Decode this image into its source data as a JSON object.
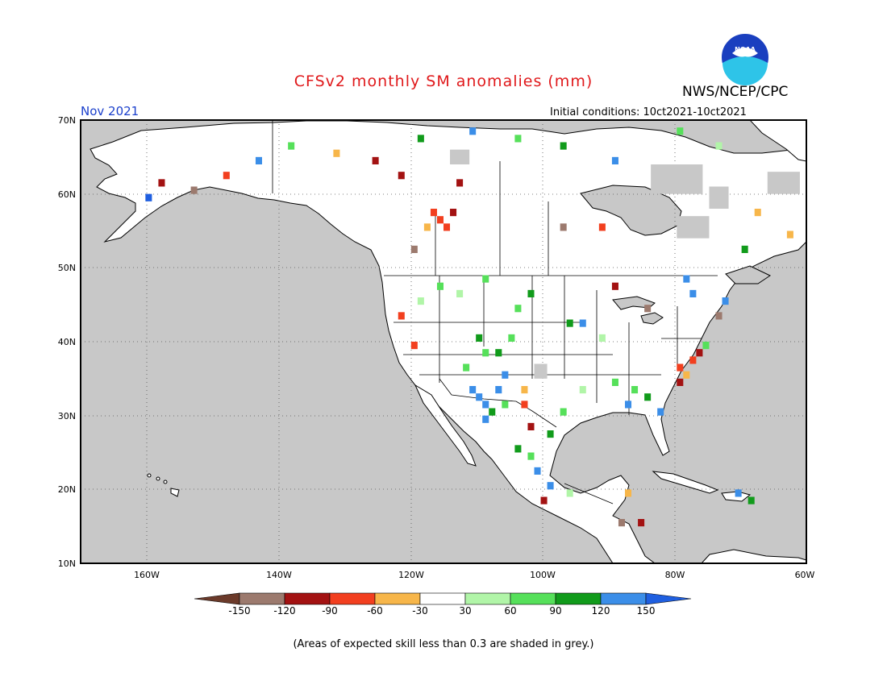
{
  "map": {
    "title": "CFSv2 monthly SM anomalies (mm)",
    "agency": "NWS/NCEP/CPC",
    "logo_text": "NOAA",
    "period": "Nov 2021",
    "initial_conditions": "Initial conditions: 10ct2021-10ct2021",
    "footnote": "(Areas of expected skill less than 0.3 are shaded in grey.)",
    "region": "North America",
    "projection": "equirectangular",
    "lon_range": [
      -172,
      -60
    ],
    "lat_range": [
      10,
      70
    ],
    "grid": true,
    "lat_ticks": [
      "10N",
      "20N",
      "30N",
      "40N",
      "50N",
      "60N",
      "70N"
    ],
    "lon_ticks": [
      "160W",
      "140W",
      "120W",
      "100W",
      "80W",
      "60W"
    ]
  },
  "colors": {
    "title": "#e0191b",
    "period": "#1a3fcc",
    "ocean": "#c8c8c8",
    "land": "#ffffff",
    "no_skill": "#c8c8c8",
    "bin_colors": [
      "#6b3a2a",
      "#9c7a6e",
      "#a31212",
      "#f23f1f",
      "#f7b64a",
      "#ffffff",
      "#b1f5a8",
      "#56e05a",
      "#119b1b",
      "#3b8ee8",
      "#1f5fe0"
    ]
  },
  "colorbar": {
    "labels": [
      "-150",
      "-120",
      "-90",
      "-60",
      "-30",
      "30",
      "60",
      "90",
      "120",
      "150"
    ]
  },
  "anomaly_cells": [
    {
      "lon": -117,
      "lat": 56,
      "value": -70
    },
    {
      "lon": -116,
      "lat": 55,
      "value": -70
    },
    {
      "lon": -118,
      "lat": 57,
      "value": -60
    },
    {
      "lon": -115,
      "lat": 57,
      "value": -100
    },
    {
      "lon": -119,
      "lat": 55,
      "value": -40
    },
    {
      "lon": -121,
      "lat": 52,
      "value": -130
    },
    {
      "lon": -123,
      "lat": 62,
      "value": -110
    },
    {
      "lon": -114,
      "lat": 61,
      "value": -100
    },
    {
      "lon": -111,
      "lat": 32,
      "value": 130
    },
    {
      "lon": -110,
      "lat": 31,
      "value": 130
    },
    {
      "lon": -110,
      "lat": 29,
      "value": 130
    },
    {
      "lon": -109,
      "lat": 30,
      "value": 100
    },
    {
      "lon": -108,
      "lat": 33,
      "value": 130
    },
    {
      "lon": -107,
      "lat": 35,
      "value": 130
    },
    {
      "lon": -112,
      "lat": 33,
      "value": 130
    },
    {
      "lon": -107,
      "lat": 31,
      "value": 70
    },
    {
      "lon": -104,
      "lat": 33,
      "value": -40
    },
    {
      "lon": -104,
      "lat": 31,
      "value": -70
    },
    {
      "lon": -103,
      "lat": 28,
      "value": -100
    },
    {
      "lon": -105,
      "lat": 25,
      "value": 100
    },
    {
      "lon": -102,
      "lat": 22,
      "value": 130
    },
    {
      "lon": -100,
      "lat": 20,
      "value": 130
    },
    {
      "lon": -101,
      "lat": 18,
      "value": -110
    },
    {
      "lon": -95,
      "lat": 42,
      "value": 130
    },
    {
      "lon": -97,
      "lat": 42,
      "value": 100
    },
    {
      "lon": -87,
      "lat": 33,
      "value": 70
    },
    {
      "lon": -85,
      "lat": 32,
      "value": 100
    },
    {
      "lon": -83,
      "lat": 30,
      "value": 130
    },
    {
      "lon": -88,
      "lat": 31,
      "value": 130
    },
    {
      "lon": -80,
      "lat": 36,
      "value": -70
    },
    {
      "lon": -79,
      "lat": 35,
      "value": -40
    },
    {
      "lon": -78,
      "lat": 37,
      "value": -70
    },
    {
      "lon": -77,
      "lat": 38,
      "value": -100
    },
    {
      "lon": -80,
      "lat": 34,
      "value": -100
    },
    {
      "lon": -76,
      "lat": 39,
      "value": 70
    },
    {
      "lon": -74,
      "lat": 43,
      "value": -130
    },
    {
      "lon": -73,
      "lat": 45,
      "value": 130
    },
    {
      "lon": -78,
      "lat": 46,
      "value": 130
    },
    {
      "lon": -79,
      "lat": 48,
      "value": 130
    },
    {
      "lon": -85,
      "lat": 44,
      "value": -130
    },
    {
      "lon": -90,
      "lat": 47,
      "value": -110
    },
    {
      "lon": -98,
      "lat": 55,
      "value": -130
    },
    {
      "lon": -92,
      "lat": 55,
      "value": -70
    },
    {
      "lon": -86,
      "lat": 15,
      "value": -100
    },
    {
      "lon": -88,
      "lat": 19,
      "value": -40
    },
    {
      "lon": -89,
      "lat": 15,
      "value": -130
    },
    {
      "lon": -71,
      "lat": 19,
      "value": 130
    },
    {
      "lon": -69,
      "lat": 18,
      "value": 100
    },
    {
      "lon": -123,
      "lat": 43,
      "value": -70
    },
    {
      "lon": -121,
      "lat": 39,
      "value": -70
    },
    {
      "lon": -111,
      "lat": 40,
      "value": 100
    },
    {
      "lon": -110,
      "lat": 38,
      "value": 70
    },
    {
      "lon": -113,
      "lat": 36,
      "value": 70
    },
    {
      "lon": -108,
      "lat": 38,
      "value": 100
    },
    {
      "lon": -106,
      "lat": 40,
      "value": 70
    },
    {
      "lon": -105,
      "lat": 44,
      "value": 70
    },
    {
      "lon": -103,
      "lat": 46,
      "value": 100
    },
    {
      "lon": -110,
      "lat": 48,
      "value": 70
    },
    {
      "lon": -114,
      "lat": 46,
      "value": 40
    },
    {
      "lon": -117,
      "lat": 47,
      "value": 70
    },
    {
      "lon": -120,
      "lat": 45,
      "value": 40
    },
    {
      "lon": -92,
      "lat": 40,
      "value": 40
    },
    {
      "lon": -90,
      "lat": 34,
      "value": 70
    },
    {
      "lon": -95,
      "lat": 33,
      "value": 40
    },
    {
      "lon": -98,
      "lat": 30,
      "value": 70
    },
    {
      "lon": -100,
      "lat": 27,
      "value": 100
    },
    {
      "lon": -103,
      "lat": 24,
      "value": 70
    },
    {
      "lon": -97,
      "lat": 19,
      "value": 40
    },
    {
      "lon": -150,
      "lat": 62,
      "value": -70
    },
    {
      "lon": -155,
      "lat": 60,
      "value": -130
    },
    {
      "lon": -160,
      "lat": 61,
      "value": -110
    },
    {
      "lon": -162,
      "lat": 59,
      "value": 150
    },
    {
      "lon": -145,
      "lat": 64,
      "value": 130
    },
    {
      "lon": -140,
      "lat": 66,
      "value": 70
    },
    {
      "lon": -133,
      "lat": 65,
      "value": -40
    },
    {
      "lon": -127,
      "lat": 64,
      "value": -100
    },
    {
      "lon": -120,
      "lat": 67,
      "value": 100
    },
    {
      "lon": -112,
      "lat": 68,
      "value": 130
    },
    {
      "lon": -105,
      "lat": 67,
      "value": 70
    },
    {
      "lon": -98,
      "lat": 66,
      "value": 100
    },
    {
      "lon": -90,
      "lat": 64,
      "value": 130
    },
    {
      "lon": -80,
      "lat": 68,
      "value": 70
    },
    {
      "lon": -74,
      "lat": 66,
      "value": 40
    },
    {
      "lon": -68,
      "lat": 57,
      "value": -40
    },
    {
      "lon": -63,
      "lat": 54,
      "value": -40
    },
    {
      "lon": -70,
      "lat": 52,
      "value": 100
    }
  ],
  "no_skill_areas": [
    {
      "lon": -84,
      "lat": 60,
      "w": 8,
      "h": 4
    },
    {
      "lon": -80,
      "lat": 54,
      "w": 5,
      "h": 3
    },
    {
      "lon": -66,
      "lat": 60,
      "w": 5,
      "h": 3
    },
    {
      "lon": -102,
      "lat": 35,
      "w": 2,
      "h": 2
    },
    {
      "lon": -75,
      "lat": 58,
      "w": 3,
      "h": 3
    },
    {
      "lon": -115,
      "lat": 64,
      "w": 3,
      "h": 2
    }
  ]
}
